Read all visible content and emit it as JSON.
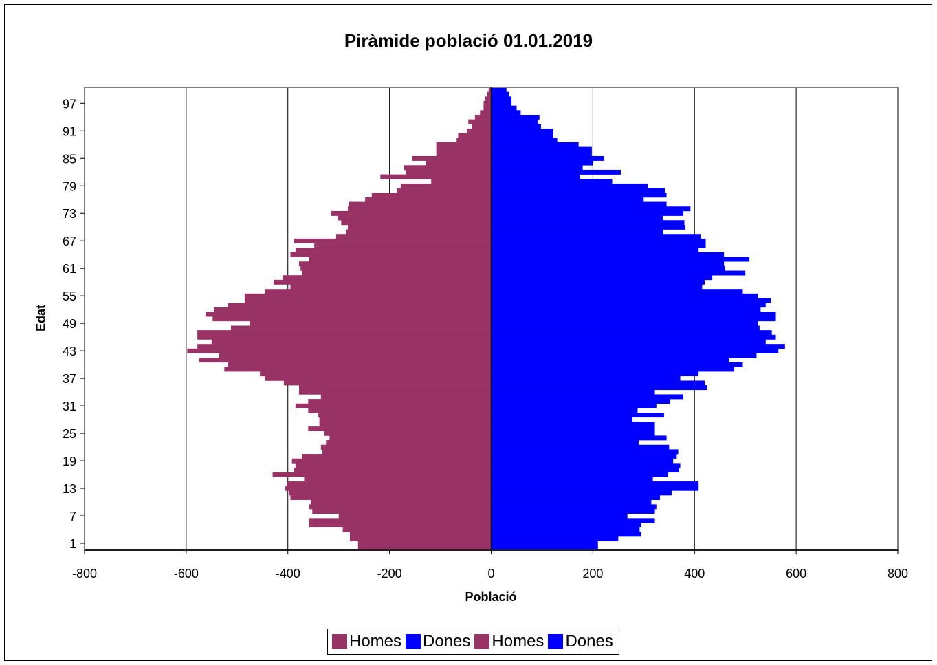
{
  "chart_data": {
    "type": "bar",
    "orientation": "horizontal",
    "title": "Piràmide població 01.01.2019",
    "xlabel": "Població",
    "ylabel": "Edat",
    "xlim": [
      -800,
      800
    ],
    "x_ticks": [
      -800,
      -600,
      -400,
      -200,
      0,
      200,
      400,
      600,
      800
    ],
    "x_tick_labels": [
      "-800",
      "-600",
      "-400",
      "-200",
      "0",
      "200",
      "400",
      "600",
      "800"
    ],
    "ages": [
      0,
      1,
      2,
      3,
      4,
      5,
      6,
      7,
      8,
      9,
      10,
      11,
      12,
      13,
      14,
      15,
      16,
      17,
      18,
      19,
      20,
      21,
      22,
      23,
      24,
      25,
      26,
      27,
      28,
      29,
      30,
      31,
      32,
      33,
      34,
      35,
      36,
      37,
      38,
      39,
      40,
      41,
      42,
      43,
      44,
      45,
      46,
      47,
      48,
      49,
      50,
      51,
      52,
      53,
      54,
      55,
      56,
      57,
      58,
      59,
      60,
      61,
      62,
      63,
      64,
      65,
      66,
      67,
      68,
      69,
      70,
      71,
      72,
      73,
      74,
      75,
      76,
      77,
      78,
      79,
      80,
      81,
      82,
      83,
      84,
      85,
      86,
      87,
      88,
      89,
      90,
      91,
      92,
      93,
      94,
      95,
      96,
      97,
      98,
      99,
      100
    ],
    "y_tick_labels": [
      "1",
      "7",
      "13",
      "19",
      "25",
      "31",
      "37",
      "43",
      "49",
      "55",
      "61",
      "67",
      "73",
      "79",
      "85",
      "91",
      "97"
    ],
    "series": [
      {
        "name": "Homes",
        "color": "#993366",
        "values": [
          -262,
          -262,
          -278,
          -278,
          -292,
          -358,
          -358,
          -300,
          -352,
          -358,
          -355,
          -395,
          -398,
          -405,
          -402,
          -368,
          -430,
          -388,
          -385,
          -392,
          -372,
          -332,
          -335,
          -325,
          -318,
          -328,
          -360,
          -338,
          -338,
          -340,
          -360,
          -385,
          -360,
          -335,
          -378,
          -378,
          -408,
          -445,
          -455,
          -525,
          -518,
          -574,
          -535,
          -598,
          -578,
          -550,
          -578,
          -578,
          -512,
          -475,
          -548,
          -562,
          -545,
          -518,
          -485,
          -485,
          -445,
          -395,
          -428,
          -410,
          -372,
          -375,
          -378,
          -358,
          -395,
          -385,
          -348,
          -388,
          -305,
          -285,
          -282,
          -295,
          -302,
          -315,
          -282,
          -280,
          -248,
          -235,
          -185,
          -178,
          -118,
          -218,
          -168,
          -172,
          -128,
          -155,
          -108,
          -108,
          -108,
          -68,
          -65,
          -48,
          -38,
          -45,
          -32,
          -22,
          -15,
          -15,
          -12,
          -8,
          -5
        ]
      },
      {
        "name": "Dones",
        "color": "#0000ff",
        "values": [
          210,
          210,
          250,
          295,
          292,
          295,
          322,
          268,
          322,
          325,
          315,
          332,
          355,
          408,
          408,
          318,
          348,
          370,
          372,
          358,
          365,
          368,
          350,
          290,
          345,
          322,
          322,
          322,
          278,
          340,
          288,
          325,
          352,
          378,
          322,
          425,
          420,
          372,
          408,
          478,
          495,
          468,
          522,
          565,
          578,
          540,
          560,
          552,
          528,
          525,
          560,
          560,
          530,
          540,
          550,
          525,
          495,
          415,
          420,
          435,
          500,
          460,
          458,
          508,
          458,
          408,
          422,
          422,
          412,
          338,
          382,
          380,
          338,
          378,
          392,
          345,
          300,
          345,
          342,
          308,
          238,
          175,
          255,
          180,
          200,
          222,
          198,
          198,
          172,
          130,
          122,
          122,
          98,
          92,
          95,
          58,
          50,
          40,
          40,
          35,
          30
        ]
      },
      {
        "name": "Homes",
        "color": "#993366",
        "values": []
      },
      {
        "name": "Dones",
        "color": "#0000ff",
        "values": []
      }
    ],
    "legend_position": "bottom",
    "grid": "vertical major lines"
  }
}
